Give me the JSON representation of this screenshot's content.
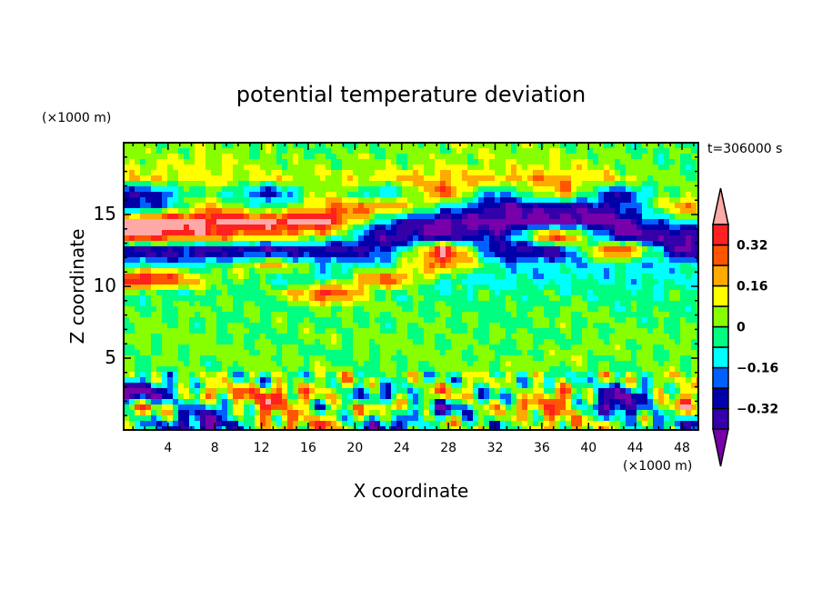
{
  "chart_data": {
    "type": "heatmap",
    "title": "potential temperature deviation",
    "xlabel": "X coordinate",
    "ylabel": "Z coordinate",
    "x_unit_label": "(×1000 m)",
    "y_unit_label": "(×1000 m)",
    "time_label": "t=306000 s",
    "xlim": [
      0.2,
      49.4
    ],
    "ylim": [
      0,
      20
    ],
    "x_ticks": [
      4,
      8,
      12,
      16,
      20,
      24,
      28,
      32,
      36,
      40,
      44,
      48
    ],
    "y_ticks": [
      5,
      10,
      15
    ],
    "colorbar": {
      "levels": [
        -0.4,
        -0.32,
        -0.24,
        -0.16,
        -0.08,
        0,
        0.08,
        0.16,
        0.24,
        0.32,
        0.4
      ],
      "labels": [
        "0.32",
        "0.16",
        "0",
        "−0.16",
        "−0.32"
      ],
      "label_values": [
        0.32,
        0.16,
        0,
        -0.16,
        -0.32
      ],
      "colors": [
        "#7700aa",
        "#3300aa",
        "#0000aa",
        "#0060ff",
        "#00ffff",
        "#00ff80",
        "#88ff00",
        "#ffff00",
        "#ffaa00",
        "#ff5500",
        "#ff2020",
        "#ffa8a8"
      ],
      "extend": "both"
    },
    "grid_x": [
      2.5,
      7.5,
      12.5,
      17.5,
      22.5,
      27.5,
      32.5,
      37.5,
      42.5,
      47.5
    ],
    "grid_z": [
      19.5,
      18.5,
      17.5,
      16.5,
      15.5,
      14.5,
      13.5,
      12.5,
      11.5,
      10.5,
      9.5,
      8.5,
      7.5,
      6.5,
      5.5,
      4.5,
      3.5,
      2.5,
      1.5,
      0.5
    ],
    "values": [
      [
        0.03,
        0.05,
        0.02,
        0.0,
        0.02,
        0.05,
        0.04,
        0.03,
        0.0,
        -0.02
      ],
      [
        0.06,
        0.1,
        0.04,
        0.02,
        0.03,
        0.06,
        0.05,
        0.08,
        0.02,
        -0.02
      ],
      [
        0.14,
        0.1,
        0.12,
        0.06,
        0.14,
        0.2,
        0.18,
        0.22,
        0.1,
        0.02
      ],
      [
        -0.3,
        0.05,
        -0.3,
        0.1,
        -0.2,
        0.3,
        -0.2,
        0.25,
        -0.3,
        0.05
      ],
      [
        -0.25,
        0.2,
        -0.1,
        0.25,
        0.3,
        -0.1,
        -0.38,
        -0.38,
        -0.3,
        0.2
      ],
      [
        0.45,
        0.45,
        0.45,
        0.45,
        -0.2,
        -0.45,
        -0.45,
        -0.45,
        -0.45,
        -0.1
      ],
      [
        0.42,
        0.3,
        0.2,
        0.1,
        -0.4,
        -0.4,
        -0.3,
        0.45,
        -0.4,
        -0.4
      ],
      [
        -0.38,
        -0.38,
        -0.38,
        -0.38,
        -0.3,
        0.45,
        -0.38,
        -0.38,
        0.45,
        -0.38
      ],
      [
        -0.12,
        -0.12,
        0.2,
        -0.12,
        -0.1,
        0.3,
        -0.12,
        -0.12,
        -0.12,
        -0.12
      ],
      [
        0.45,
        0.1,
        -0.08,
        -0.1,
        0.35,
        -0.1,
        -0.1,
        -0.1,
        -0.1,
        -0.1
      ],
      [
        -0.04,
        -0.04,
        -0.04,
        0.4,
        -0.04,
        -0.04,
        -0.04,
        -0.04,
        -0.04,
        -0.04
      ],
      [
        -0.02,
        0.03,
        -0.04,
        0.02,
        0.03,
        -0.03,
        -0.02,
        0.01,
        -0.03,
        -0.02
      ],
      [
        0.02,
        -0.03,
        0.03,
        -0.02,
        -0.03,
        0.02,
        -0.04,
        0.03,
        -0.02,
        -0.03
      ],
      [
        0.04,
        0.02,
        -0.03,
        0.04,
        0.03,
        -0.02,
        0.03,
        -0.03,
        0.04,
        0.02
      ],
      [
        -0.02,
        0.04,
        0.03,
        -0.03,
        0.04,
        0.03,
        -0.02,
        0.04,
        0.03,
        -0.02
      ],
      [
        0.03,
        -0.03,
        0.04,
        0.03,
        -0.03,
        0.04,
        0.03,
        0.04,
        -0.03,
        0.04
      ],
      [
        -0.1,
        0.05,
        -0.08,
        0.06,
        0.04,
        -0.05,
        0.06,
        -0.08,
        0.03,
        0.06
      ],
      [
        -0.45,
        0.2,
        0.3,
        0.1,
        -0.3,
        0.25,
        -0.2,
        0.3,
        -0.45,
        0.15
      ],
      [
        0.2,
        -0.3,
        0.3,
        -0.1,
        0.3,
        -0.4,
        0.2,
        0.25,
        -0.45,
        0.2
      ],
      [
        -0.1,
        -0.4,
        0.1,
        0.25,
        -0.35,
        0.1,
        -0.1,
        0.15,
        0.05,
        -0.2
      ]
    ]
  }
}
